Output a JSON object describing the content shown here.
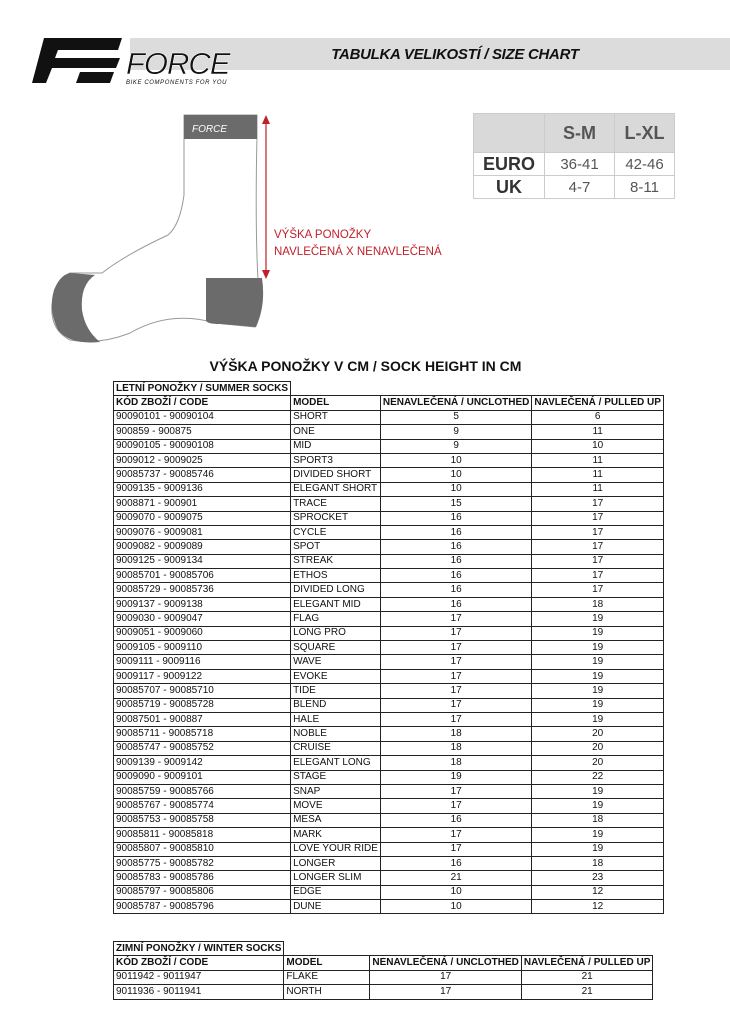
{
  "header": {
    "title": "TABULKA VELIKOSTÍ / SIZE CHART",
    "logo_text": "FORCE",
    "logo_tagline": "BIKE COMPONENTS FOR YOU"
  },
  "size_chart": {
    "columns": [
      "",
      "S-M",
      "L-XL"
    ],
    "rows": [
      {
        "label": "EURO",
        "values": [
          "36-41",
          "42-46"
        ]
      },
      {
        "label": "UK",
        "values": [
          "4-7",
          "8-11"
        ]
      }
    ]
  },
  "illustration": {
    "sock_logo": "FORCE",
    "measure_label_1": "VÝŠKA PONOŽKY",
    "measure_label_2": "NAVLEČENÁ X NENAVLEČENÁ",
    "accent_color": "#c0202a"
  },
  "subtitle": "VÝŠKA PONOŽKY V CM / SOCK HEIGHT IN CM",
  "columns": [
    "KÓD ZBOŽÍ / CODE",
    "MODEL",
    "NENAVLEČENÁ / UNCLOTHED",
    "NAVLEČENÁ / PULLED UP"
  ],
  "summer": {
    "caption": "LETNÍ PONOŽKY / SUMMER SOCKS",
    "rows": [
      [
        "90090101 - 90090104",
        "SHORT",
        "5",
        "6"
      ],
      [
        "900859 - 900875",
        "ONE",
        "9",
        "11"
      ],
      [
        "90090105 - 90090108",
        "MID",
        "9",
        "10"
      ],
      [
        "9009012 - 9009025",
        "SPORT3",
        "10",
        "11"
      ],
      [
        "90085737 - 90085746",
        "DIVIDED SHORT",
        "10",
        "11"
      ],
      [
        "9009135 - 9009136",
        "ELEGANT SHORT",
        "10",
        "11"
      ],
      [
        "9008871 - 900901",
        "TRACE",
        "15",
        "17"
      ],
      [
        "9009070 - 9009075",
        "SPROCKET",
        "16",
        "17"
      ],
      [
        "9009076 - 9009081",
        "CYCLE",
        "16",
        "17"
      ],
      [
        "9009082 - 9009089",
        "SPOT",
        "16",
        "17"
      ],
      [
        "9009125 - 9009134",
        "STREAK",
        "16",
        "17"
      ],
      [
        "90085701 - 90085706",
        "ETHOS",
        "16",
        "17"
      ],
      [
        "90085729 - 90085736",
        "DIVIDED LONG",
        "16",
        "17"
      ],
      [
        "9009137 - 9009138",
        "ELEGANT MID",
        "16",
        "18"
      ],
      [
        "9009030 - 9009047",
        "FLAG",
        "17",
        "19"
      ],
      [
        "9009051 - 9009060",
        "LONG PRO",
        "17",
        "19"
      ],
      [
        "9009105 - 9009110",
        "SQUARE",
        "17",
        "19"
      ],
      [
        "9009111 - 9009116",
        "WAVE",
        "17",
        "19"
      ],
      [
        "9009117 - 9009122",
        "EVOKE",
        "17",
        "19"
      ],
      [
        "90085707 - 90085710",
        "TIDE",
        "17",
        "19"
      ],
      [
        "90085719 - 90085728",
        "BLEND",
        "17",
        "19"
      ],
      [
        "90087501 - 900887",
        "HALE",
        "17",
        "19"
      ],
      [
        "90085711 - 90085718",
        "NOBLE",
        "18",
        "20"
      ],
      [
        "90085747 - 90085752",
        "CRUISE",
        "18",
        "20"
      ],
      [
        "9009139 - 9009142",
        "ELEGANT LONG",
        "18",
        "20"
      ],
      [
        "9009090 - 9009101",
        "STAGE",
        "19",
        "22"
      ],
      [
        "90085759 - 90085766",
        "SNAP",
        "17",
        "19"
      ],
      [
        "90085767 - 90085774",
        "MOVE",
        "17",
        "19"
      ],
      [
        "90085753 - 90085758",
        "MESA",
        "16",
        "18"
      ],
      [
        "90085811 - 90085818",
        "MARK",
        "17",
        "19"
      ],
      [
        "90085807 - 90085810",
        "LOVE YOUR RIDE",
        "17",
        "19"
      ],
      [
        "90085775 - 90085782",
        "LONGER",
        "16",
        "18"
      ],
      [
        "90085783 - 90085786",
        "LONGER SLIM",
        "21",
        "23"
      ],
      [
        "90085797 - 90085806",
        "EDGE",
        "10",
        "12"
      ],
      [
        "90085787 - 90085796",
        "DUNE",
        "10",
        "12"
      ]
    ]
  },
  "winter": {
    "caption": "ZIMNÍ PONOŽKY / WINTER SOCKS",
    "rows": [
      [
        "9011942 - 9011947",
        "FLAKE",
        "17",
        "21"
      ],
      [
        "9011936 - 9011941",
        "NORTH",
        "17",
        "21"
      ]
    ]
  }
}
